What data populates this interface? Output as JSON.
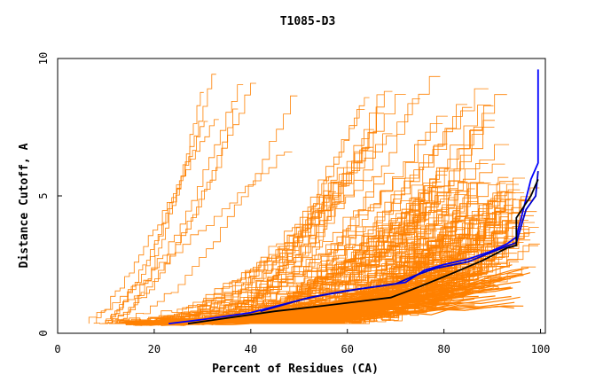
{
  "chart_data": {
    "type": "line",
    "title": "T1085-D3",
    "xlabel": "Percent of Residues (CA)",
    "ylabel": "Distance Cutoff, A",
    "xlim": [
      0,
      101
    ],
    "ylim": [
      0,
      10
    ],
    "x_ticks": [
      0,
      20,
      40,
      60,
      80,
      100
    ],
    "y_ticks": [
      0,
      5,
      10
    ],
    "x_tick_labels": [
      "0",
      "20",
      "40",
      "60",
      "80",
      "100"
    ],
    "y_tick_labels": [
      "0",
      "5",
      "10"
    ],
    "grid": false,
    "legend": "none",
    "colors": {
      "background_models": "#ff8000",
      "highlight_blue": "#0000ff",
      "highlight_black": "#000000",
      "axes": "#000000"
    },
    "background_models": {
      "count": 190,
      "x_start_range": [
        6,
        58
      ],
      "x_end_range": [
        28,
        100
      ],
      "y_start": 0.35,
      "y_end_max": 9.5
    },
    "series": [
      {
        "color": "#0000ff",
        "points": [
          [
            23,
            0.35
          ],
          [
            30,
            0.5
          ],
          [
            40,
            0.75
          ],
          [
            50,
            1.2
          ],
          [
            55,
            1.4
          ],
          [
            60,
            1.55
          ],
          [
            68,
            1.75
          ],
          [
            72,
            1.85
          ],
          [
            76,
            2.3
          ],
          [
            80,
            2.5
          ],
          [
            85,
            2.7
          ],
          [
            90,
            3.0
          ],
          [
            93,
            3.25
          ],
          [
            95,
            3.5
          ],
          [
            96,
            4.2
          ],
          [
            98,
            5.6
          ],
          [
            99.5,
            6.2
          ],
          [
            99.5,
            9.6
          ]
        ]
      },
      {
        "color": "#0000cc",
        "points": [
          [
            42,
            0.8
          ],
          [
            52,
            1.3
          ],
          [
            62,
            1.6
          ],
          [
            70,
            1.8
          ],
          [
            74,
            2.1
          ],
          [
            78,
            2.35
          ],
          [
            85,
            2.6
          ],
          [
            92,
            3.1
          ],
          [
            95,
            3.3
          ],
          [
            97,
            4.5
          ],
          [
            99,
            5.0
          ],
          [
            99.5,
            5.9
          ]
        ]
      },
      {
        "color": "#000000",
        "points": [
          [
            27,
            0.35
          ],
          [
            35,
            0.55
          ],
          [
            45,
            0.8
          ],
          [
            55,
            1.0
          ],
          [
            62,
            1.15
          ],
          [
            69,
            1.3
          ],
          [
            75,
            1.7
          ],
          [
            82,
            2.2
          ],
          [
            88,
            2.65
          ],
          [
            93,
            3.1
          ],
          [
            95,
            3.2
          ],
          [
            95,
            4.2
          ],
          [
            98,
            5.0
          ],
          [
            99.5,
            5.6
          ]
        ]
      }
    ]
  }
}
